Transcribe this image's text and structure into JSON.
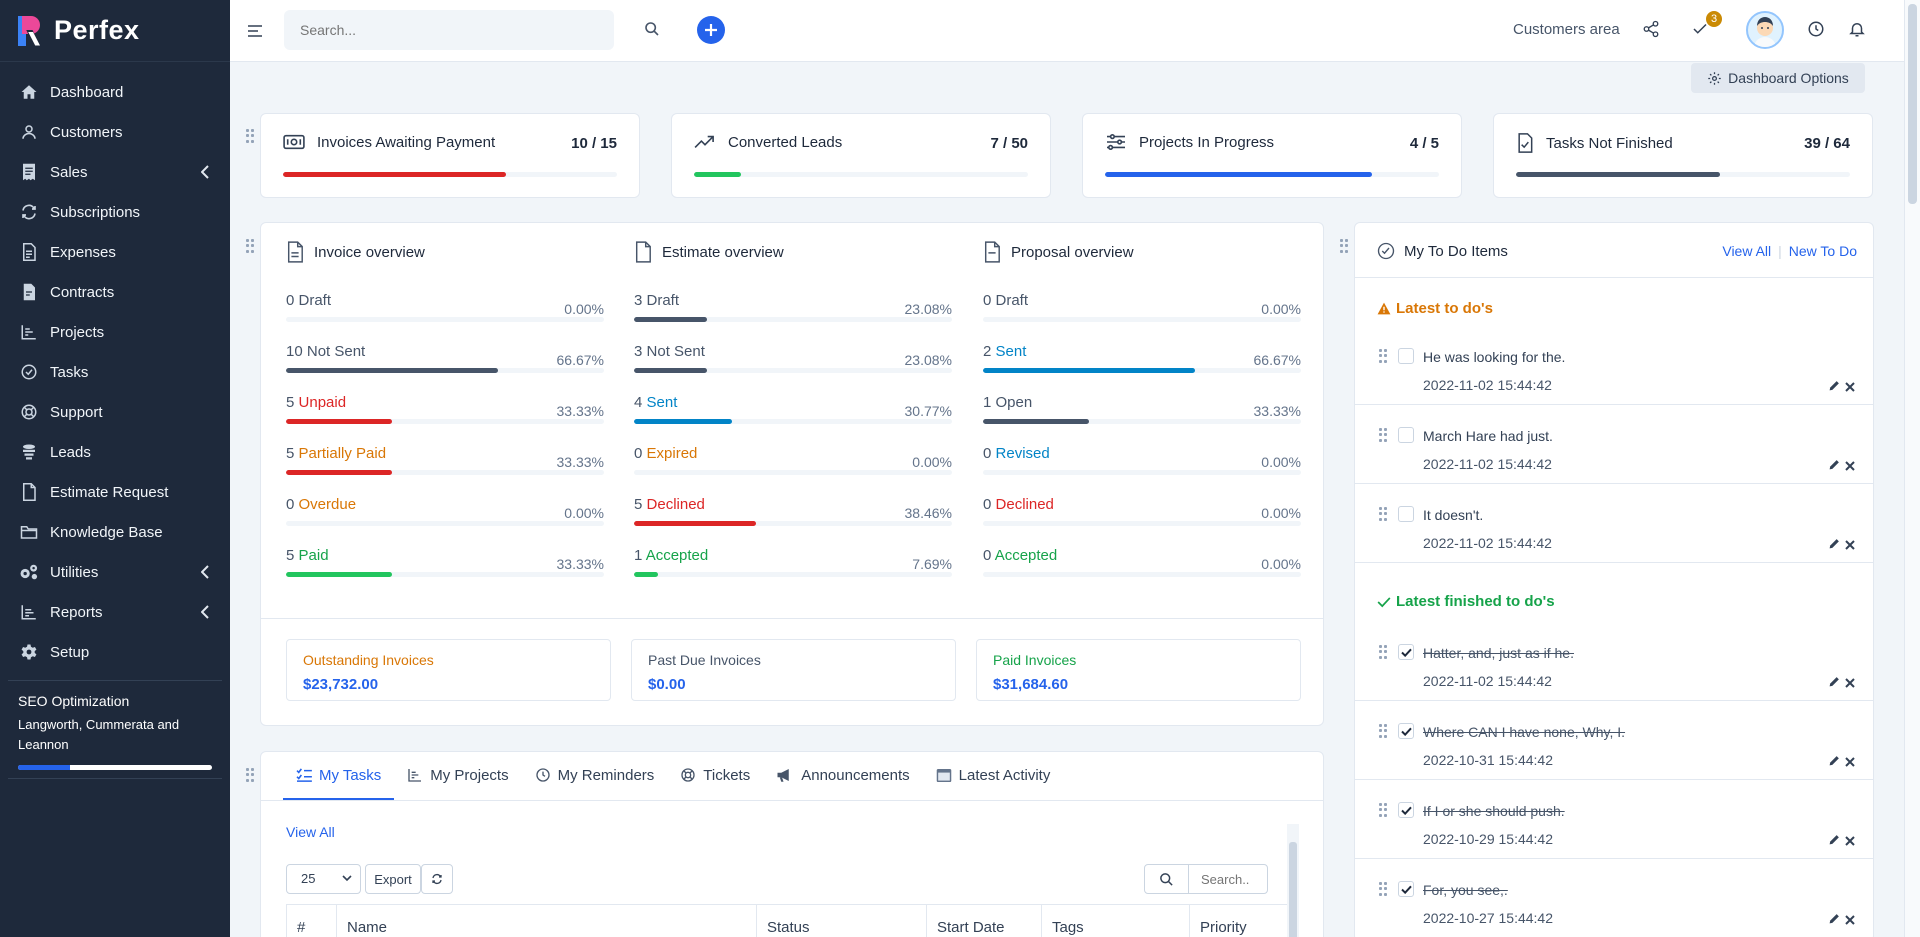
{
  "app": {
    "name": "Perfex"
  },
  "sidebar": {
    "items": [
      {
        "label": "Dashboard",
        "icon": "home-icon"
      },
      {
        "label": "Customers",
        "icon": "user-icon"
      },
      {
        "label": "Sales",
        "icon": "receipt-icon",
        "has_submenu": true
      },
      {
        "label": "Subscriptions",
        "icon": "repeat-icon"
      },
      {
        "label": "Expenses",
        "icon": "file-text-icon"
      },
      {
        "label": "Contracts",
        "icon": "contract-icon"
      },
      {
        "label": "Projects",
        "icon": "chart-icon"
      },
      {
        "label": "Tasks",
        "icon": "check-circle-icon"
      },
      {
        "label": "Support",
        "icon": "lifebuoy-icon"
      },
      {
        "label": "Leads",
        "icon": "funnel-icon"
      },
      {
        "label": "Estimate Request",
        "icon": "document-icon"
      },
      {
        "label": "Knowledge Base",
        "icon": "folder-icon"
      },
      {
        "label": "Utilities",
        "icon": "cogs-icon",
        "has_submenu": true
      },
      {
        "label": "Reports",
        "icon": "bar-chart-icon",
        "has_submenu": true
      },
      {
        "label": "Setup",
        "icon": "gear-icon"
      }
    ],
    "project": {
      "title": "SEO Optimization",
      "client": "Langworth, Cummerata and Leannon",
      "progress": 0.27
    }
  },
  "topbar": {
    "search_placeholder": "Search...",
    "customers_area": "Customers area",
    "todo_badge": "3"
  },
  "dashboard_options": "Dashboard Options",
  "stats": [
    {
      "label": "Invoices Awaiting Payment",
      "count": "10 / 15",
      "progress": 0.6667,
      "color": "#dc2626"
    },
    {
      "label": "Converted Leads",
      "count": "7 / 50",
      "progress": 0.14,
      "color": "#22c55e"
    },
    {
      "label": "Projects In Progress",
      "count": "4 / 5",
      "progress": 0.8,
      "color": "#2563eb"
    },
    {
      "label": "Tasks Not Finished",
      "count": "39 / 64",
      "progress": 0.6094,
      "color": "#475569"
    }
  ],
  "overview": {
    "invoice": {
      "title": "Invoice overview",
      "rows": [
        {
          "count": "0",
          "label": "Draft",
          "percent": "0.00%",
          "value": 0,
          "color": "#475569"
        },
        {
          "count": "10",
          "label": "Not Sent",
          "percent": "66.67%",
          "value": 0.6667,
          "color": "#475569"
        },
        {
          "count": "5",
          "label": "Unpaid",
          "percent": "33.33%",
          "value": 0.3333,
          "color": "#dc2626"
        },
        {
          "count": "5",
          "label": "Partially Paid",
          "percent": "33.33%",
          "value": 0.3333,
          "color": "#d97706",
          "bar_color": "#dc2626"
        },
        {
          "count": "0",
          "label": "Overdue",
          "percent": "0.00%",
          "value": 0,
          "color": "#d97706"
        },
        {
          "count": "5",
          "label": "Paid",
          "percent": "33.33%",
          "value": 0.3333,
          "color": "#16a34a",
          "bar_color": "#22c55e"
        }
      ]
    },
    "estimate": {
      "title": "Estimate overview",
      "rows": [
        {
          "count": "3",
          "label": "Draft",
          "percent": "23.08%",
          "value": 0.2308,
          "color": "#475569"
        },
        {
          "count": "3",
          "label": "Not Sent",
          "percent": "23.08%",
          "value": 0.2308,
          "color": "#475569"
        },
        {
          "count": "4",
          "label": "Sent",
          "percent": "30.77%",
          "value": 0.3077,
          "color": "#0284c7"
        },
        {
          "count": "0",
          "label": "Expired",
          "percent": "0.00%",
          "value": 0,
          "color": "#d97706"
        },
        {
          "count": "5",
          "label": "Declined",
          "percent": "38.46%",
          "value": 0.3846,
          "color": "#dc2626"
        },
        {
          "count": "1",
          "label": "Accepted",
          "percent": "7.69%",
          "value": 0.0769,
          "color": "#16a34a",
          "bar_color": "#22c55e"
        }
      ]
    },
    "proposal": {
      "title": "Proposal overview",
      "rows": [
        {
          "count": "0",
          "label": "Draft",
          "percent": "0.00%",
          "value": 0,
          "color": "#475569"
        },
        {
          "count": "2",
          "label": "Sent",
          "percent": "66.67%",
          "value": 0.6667,
          "color": "#0284c7"
        },
        {
          "count": "1",
          "label": "Open",
          "percent": "33.33%",
          "value": 0.3333,
          "color": "#475569"
        },
        {
          "count": "0",
          "label": "Revised",
          "percent": "0.00%",
          "value": 0,
          "color": "#0284c7"
        },
        {
          "count": "0",
          "label": "Declined",
          "percent": "0.00%",
          "value": 0,
          "color": "#dc2626"
        },
        {
          "count": "0",
          "label": "Accepted",
          "percent": "0.00%",
          "value": 0,
          "color": "#16a34a"
        }
      ]
    },
    "summary": [
      {
        "label": "Outstanding Invoices",
        "value": "$23,732.00",
        "color": "#d97706"
      },
      {
        "label": "Past Due Invoices",
        "value": "$0.00",
        "color": "#475569"
      },
      {
        "label": "Paid Invoices",
        "value": "$31,684.60",
        "color": "#16a34a"
      }
    ]
  },
  "tabs": {
    "items": [
      {
        "label": "My Tasks",
        "icon": "list-check-icon",
        "active": true
      },
      {
        "label": "My Projects",
        "icon": "chart-icon"
      },
      {
        "label": "My Reminders",
        "icon": "clock-icon"
      },
      {
        "label": "Tickets",
        "icon": "lifebuoy-icon"
      },
      {
        "label": "Announcements",
        "icon": "megaphone-icon"
      },
      {
        "label": "Latest Activity",
        "icon": "window-icon"
      }
    ],
    "view_all": "View All",
    "page_size": "25",
    "export": "Export",
    "search_placeholder": "Search..",
    "columns": [
      "#",
      "Name",
      "Status",
      "Start Date",
      "Tags",
      "Priority"
    ]
  },
  "todo": {
    "title": "My To Do Items",
    "view_all": "View All",
    "new_todo": "New To Do",
    "latest_title": "Latest to do's",
    "finished_title": "Latest finished to do's",
    "latest": [
      {
        "text": "He was looking for the.",
        "date": "2022-11-02 15:44:42"
      },
      {
        "text": "March Hare had just.",
        "date": "2022-11-02 15:44:42"
      },
      {
        "text": "It doesn't.",
        "date": "2022-11-02 15:44:42"
      }
    ],
    "finished": [
      {
        "text": "Hatter, and, just as if he.",
        "date": "2022-11-02 15:44:42"
      },
      {
        "text": "Where CAN I have none, Why, I.",
        "date": "2022-10-31 15:44:42"
      },
      {
        "text": "If I or she should push.",
        "date": "2022-10-29 15:44:42"
      },
      {
        "text": "For, you see,.",
        "date": "2022-10-27 15:44:42"
      }
    ]
  }
}
